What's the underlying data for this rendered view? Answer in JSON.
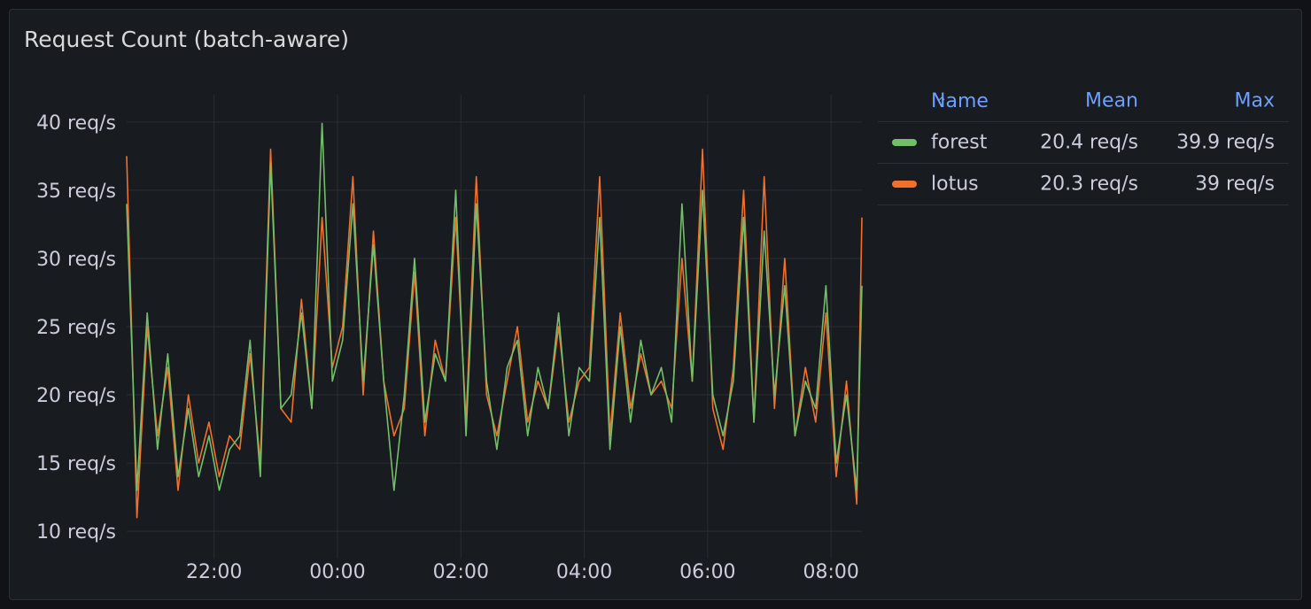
{
  "panel": {
    "title": "Request Count (batch-aware)"
  },
  "legend": {
    "headers": {
      "name": "Name",
      "mean": "Mean",
      "max": "Max"
    },
    "sort_icon": "chevron-up-icon",
    "rows": [
      {
        "name": "forest",
        "mean": "20.4 req/s",
        "max": "39.9 req/s",
        "color": "#73bf69"
      },
      {
        "name": "lotus",
        "mean": "20.3 req/s",
        "max": "39 req/s",
        "color": "#f2702a"
      }
    ]
  },
  "chart_data": {
    "type": "line",
    "title": "Request Count (batch-aware)",
    "xlabel": "",
    "ylabel": "",
    "x_range": [
      "20:35",
      "08:30"
    ],
    "x_ticks": [
      "22:00",
      "00:00",
      "02:00",
      "04:00",
      "06:00",
      "08:00"
    ],
    "y_ticks": [
      "10 req/s",
      "15 req/s",
      "20 req/s",
      "25 req/s",
      "30 req/s",
      "35 req/s",
      "40 req/s"
    ],
    "ylim": [
      8,
      42
    ],
    "grid": true,
    "legend_position": "right",
    "series": [
      {
        "name": "lotus",
        "color": "#f2702a",
        "x": [
          "20:35",
          "20:45",
          "20:55",
          "21:05",
          "21:15",
          "21:25",
          "21:35",
          "21:45",
          "21:55",
          "22:05",
          "22:15",
          "22:25",
          "22:35",
          "22:45",
          "22:55",
          "23:05",
          "23:15",
          "23:25",
          "23:35",
          "23:45",
          "23:55",
          "00:05",
          "00:15",
          "00:25",
          "00:35",
          "00:45",
          "00:55",
          "01:05",
          "01:15",
          "01:25",
          "01:35",
          "01:45",
          "01:55",
          "02:05",
          "02:15",
          "02:25",
          "02:35",
          "02:45",
          "02:55",
          "03:05",
          "03:15",
          "03:25",
          "03:35",
          "03:45",
          "03:55",
          "04:05",
          "04:15",
          "04:25",
          "04:35",
          "04:45",
          "04:55",
          "05:05",
          "05:15",
          "05:25",
          "05:35",
          "05:45",
          "05:55",
          "06:05",
          "06:15",
          "06:25",
          "06:35",
          "06:45",
          "06:55",
          "07:05",
          "07:15",
          "07:25",
          "07:35",
          "07:45",
          "07:55",
          "08:05",
          "08:15",
          "08:25",
          "08:30"
        ],
        "values": [
          37.5,
          11,
          25,
          17,
          22,
          13,
          20,
          15,
          18,
          14,
          17,
          16,
          23,
          15,
          38,
          19,
          18,
          27,
          19,
          33,
          22,
          25,
          36,
          20,
          32,
          21,
          17,
          19,
          29,
          17,
          24,
          21,
          33,
          18,
          36,
          20,
          17,
          21,
          25,
          18,
          21,
          19,
          25,
          18,
          21,
          22,
          36,
          17,
          26,
          19,
          23,
          20,
          21,
          19,
          30,
          21,
          38,
          19,
          16,
          22,
          35,
          18,
          36,
          19,
          30,
          17,
          22,
          18,
          26,
          14,
          21,
          12,
          33
        ]
      },
      {
        "name": "forest",
        "color": "#73bf69",
        "x": [
          "20:35",
          "20:45",
          "20:55",
          "21:05",
          "21:15",
          "21:25",
          "21:35",
          "21:45",
          "21:55",
          "22:05",
          "22:15",
          "22:25",
          "22:35",
          "22:45",
          "22:55",
          "23:05",
          "23:15",
          "23:25",
          "23:35",
          "23:45",
          "23:55",
          "00:05",
          "00:15",
          "00:25",
          "00:35",
          "00:45",
          "00:55",
          "01:05",
          "01:15",
          "01:25",
          "01:35",
          "01:45",
          "01:55",
          "02:05",
          "02:15",
          "02:25",
          "02:35",
          "02:45",
          "02:55",
          "03:05",
          "03:15",
          "03:25",
          "03:35",
          "03:45",
          "03:55",
          "04:05",
          "04:15",
          "04:25",
          "04:35",
          "04:45",
          "04:55",
          "05:05",
          "05:15",
          "05:25",
          "05:35",
          "05:45",
          "05:55",
          "06:05",
          "06:15",
          "06:25",
          "06:35",
          "06:45",
          "06:55",
          "07:05",
          "07:15",
          "07:25",
          "07:35",
          "07:45",
          "07:55",
          "08:05",
          "08:15",
          "08:25",
          "08:30"
        ],
        "values": [
          34,
          13,
          26,
          16,
          23,
          14,
          19,
          14,
          17,
          13,
          16,
          17,
          24,
          14,
          37,
          19,
          20,
          26,
          19,
          39.9,
          21,
          24,
          34,
          21,
          31,
          21,
          13,
          20,
          30,
          18,
          23,
          21,
          35,
          17,
          34,
          21,
          16,
          22,
          24,
          17,
          22,
          19,
          26,
          17,
          22,
          21,
          33,
          16,
          25,
          18,
          24,
          20,
          22,
          18,
          34,
          21,
          35,
          20,
          17,
          21,
          33,
          18,
          32,
          20,
          28,
          17,
          21,
          19,
          28,
          15,
          20,
          13,
          28
        ]
      }
    ]
  }
}
